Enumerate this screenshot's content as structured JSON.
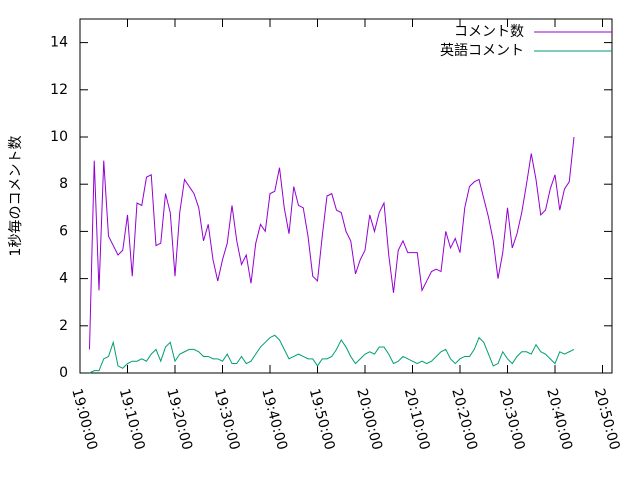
{
  "chart_data": {
    "type": "line",
    "ylabel": "1秒毎のコメント数",
    "x": [
      "19:02:00",
      "19:03:00",
      "19:04:00",
      "19:05:00",
      "19:06:00",
      "19:07:00",
      "19:08:00",
      "19:09:00",
      "19:10:00",
      "19:11:00",
      "19:12:00",
      "19:13:00",
      "19:14:00",
      "19:15:00",
      "19:16:00",
      "19:17:00",
      "19:18:00",
      "19:19:00",
      "19:20:00",
      "19:21:00",
      "19:22:00",
      "19:23:00",
      "19:24:00",
      "19:25:00",
      "19:26:00",
      "19:27:00",
      "19:28:00",
      "19:29:00",
      "19:30:00",
      "19:31:00",
      "19:32:00",
      "19:33:00",
      "19:34:00",
      "19:35:00",
      "19:36:00",
      "19:37:00",
      "19:38:00",
      "19:39:00",
      "19:40:00",
      "19:41:00",
      "19:42:00",
      "19:43:00",
      "19:44:00",
      "19:45:00",
      "19:46:00",
      "19:47:00",
      "19:48:00",
      "19:49:00",
      "19:50:00",
      "19:51:00",
      "19:52:00",
      "19:53:00",
      "19:54:00",
      "19:55:00",
      "19:56:00",
      "19:57:00",
      "19:58:00",
      "19:59:00",
      "20:00:00",
      "20:01:00",
      "20:02:00",
      "20:03:00",
      "20:04:00",
      "20:05:00",
      "20:06:00",
      "20:07:00",
      "20:08:00",
      "20:09:00",
      "20:10:00",
      "20:11:00",
      "20:12:00",
      "20:13:00",
      "20:14:00",
      "20:15:00",
      "20:16:00",
      "20:17:00",
      "20:18:00",
      "20:19:00",
      "20:20:00",
      "20:21:00",
      "20:22:00",
      "20:23:00",
      "20:24:00",
      "20:25:00",
      "20:26:00",
      "20:27:00",
      "20:28:00",
      "20:29:00",
      "20:30:00",
      "20:31:00",
      "20:32:00",
      "20:33:00",
      "20:34:00",
      "20:35:00",
      "20:36:00",
      "20:37:00",
      "20:38:00",
      "20:39:00",
      "20:40:00",
      "20:41:00",
      "20:42:00",
      "20:43:00",
      "20:44:00"
    ],
    "series": [
      {
        "name": "コメント数",
        "color": "#9400d3",
        "values": [
          1.0,
          9.0,
          3.5,
          9.0,
          5.8,
          5.4,
          5.0,
          5.2,
          6.7,
          4.1,
          7.2,
          7.1,
          8.3,
          8.4,
          5.4,
          5.5,
          7.6,
          6.8,
          4.1,
          6.8,
          8.2,
          7.9,
          7.6,
          7.0,
          5.6,
          6.3,
          4.8,
          3.9,
          4.8,
          5.5,
          7.1,
          5.6,
          4.6,
          5.0,
          3.8,
          5.5,
          6.3,
          6.0,
          7.6,
          7.7,
          8.7,
          7.0,
          5.9,
          7.9,
          7.1,
          7.0,
          5.8,
          4.1,
          3.9,
          5.8,
          7.5,
          7.6,
          6.9,
          6.8,
          6.0,
          5.6,
          4.2,
          4.8,
          5.2,
          6.7,
          6.0,
          6.8,
          7.2,
          5.0,
          3.4,
          5.2,
          5.6,
          5.1,
          5.1,
          5.1,
          3.5,
          3.9,
          4.3,
          4.4,
          4.3,
          6.0,
          5.3,
          5.7,
          5.1,
          7.0,
          7.9,
          8.1,
          8.2,
          7.4,
          6.6,
          5.6,
          4.0,
          5.1,
          7.0,
          5.3,
          5.9,
          6.8,
          8.0,
          9.3,
          8.2,
          6.7,
          6.9,
          7.8,
          8.4,
          6.9,
          7.8,
          8.1,
          10.0
        ]
      },
      {
        "name": "英語コメント",
        "color": "#009e73",
        "values": [
          0.0,
          0.1,
          0.1,
          0.6,
          0.7,
          1.3,
          0.3,
          0.2,
          0.4,
          0.5,
          0.5,
          0.6,
          0.5,
          0.8,
          1.0,
          0.5,
          1.1,
          1.3,
          0.5,
          0.8,
          0.9,
          1.0,
          1.0,
          0.9,
          0.7,
          0.7,
          0.6,
          0.6,
          0.5,
          0.8,
          0.4,
          0.4,
          0.7,
          0.4,
          0.5,
          0.8,
          1.1,
          1.3,
          1.5,
          1.6,
          1.4,
          1.0,
          0.6,
          0.7,
          0.8,
          0.7,
          0.6,
          0.6,
          0.3,
          0.6,
          0.6,
          0.7,
          1.0,
          1.4,
          1.1,
          0.7,
          0.4,
          0.6,
          0.8,
          0.9,
          0.8,
          1.1,
          1.1,
          0.8,
          0.4,
          0.5,
          0.7,
          0.6,
          0.5,
          0.4,
          0.5,
          0.4,
          0.5,
          0.7,
          0.9,
          1.0,
          0.6,
          0.4,
          0.6,
          0.7,
          0.7,
          1.0,
          1.5,
          1.3,
          0.8,
          0.3,
          0.4,
          0.9,
          0.6,
          0.4,
          0.7,
          0.9,
          0.9,
          0.8,
          1.2,
          0.9,
          0.8,
          0.6,
          0.4,
          0.9,
          0.8,
          0.9,
          1.0
        ]
      }
    ],
    "xlim": [
      "19:00:00",
      "20:52:00"
    ],
    "xticks": [
      "19:00:00",
      "19:10:00",
      "19:20:00",
      "19:30:00",
      "19:40:00",
      "19:50:00",
      "20:00:00",
      "20:10:00",
      "20:20:00",
      "20:30:00",
      "20:40:00",
      "20:50:00"
    ],
    "ylim": [
      0,
      15
    ],
    "yticks": [
      0,
      2,
      4,
      6,
      8,
      10,
      12,
      14
    ],
    "grid": false,
    "legend": "top-right"
  }
}
